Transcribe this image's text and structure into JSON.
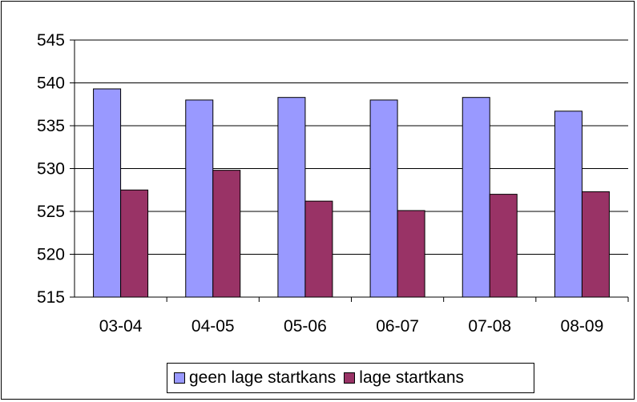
{
  "chart_data": {
    "type": "bar",
    "categories": [
      "03-04",
      "04-05",
      "05-06",
      "06-07",
      "07-08",
      "08-09"
    ],
    "series": [
      {
        "name": "geen lage startkans",
        "color": "#9999FF",
        "values": [
          539.3,
          538.0,
          538.3,
          538.0,
          538.3,
          536.7
        ]
      },
      {
        "name": "lage startkans",
        "color": "#993366",
        "values": [
          527.5,
          529.8,
          526.2,
          525.1,
          527.0,
          527.3
        ]
      }
    ],
    "title": "",
    "xlabel": "",
    "ylabel": "",
    "ylim": [
      515,
      545
    ],
    "yticks": [
      "515",
      "520",
      "525",
      "530",
      "535",
      "540",
      "545"
    ],
    "grid": true,
    "legend_position": "bottom"
  }
}
